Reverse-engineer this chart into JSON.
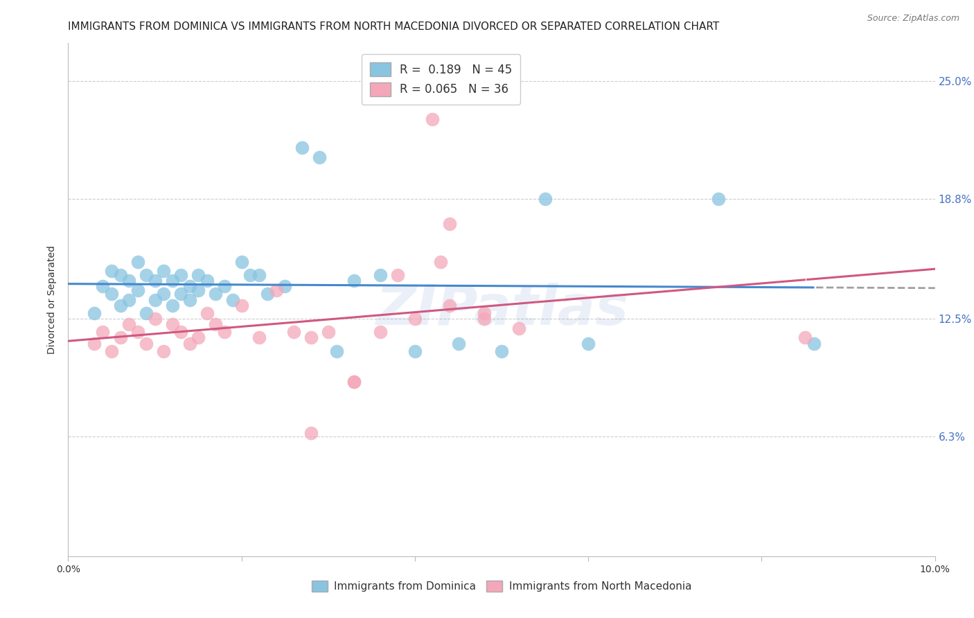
{
  "title": "IMMIGRANTS FROM DOMINICA VS IMMIGRANTS FROM NORTH MACEDONIA DIVORCED OR SEPARATED CORRELATION CHART",
  "source": "Source: ZipAtlas.com",
  "ylabel": "Divorced or Separated",
  "xlim": [
    0.0,
    0.1
  ],
  "ylim": [
    0.0,
    0.27
  ],
  "yticks": [
    0.063,
    0.125,
    0.188,
    0.25
  ],
  "ytick_labels": [
    "6.3%",
    "12.5%",
    "18.8%",
    "25.0%"
  ],
  "xticks": [
    0.0,
    0.02,
    0.04,
    0.06,
    0.08,
    0.1
  ],
  "xtick_labels": [
    "0.0%",
    "",
    "",
    "",
    "",
    "10.0%"
  ],
  "watermark": "ZIPatlas",
  "blue_R": 0.189,
  "blue_N": 45,
  "pink_R": 0.065,
  "pink_N": 36,
  "blue_color": "#89c4e1",
  "pink_color": "#f4a7b9",
  "blue_line_color": "#4488cc",
  "pink_line_color": "#d05880",
  "legend_label_blue": "Immigrants from Dominica",
  "legend_label_pink": "Immigrants from North Macedonia",
  "blue_scatter_x": [
    0.003,
    0.004,
    0.005,
    0.005,
    0.006,
    0.006,
    0.007,
    0.007,
    0.008,
    0.008,
    0.009,
    0.009,
    0.01,
    0.01,
    0.011,
    0.011,
    0.012,
    0.012,
    0.013,
    0.013,
    0.014,
    0.014,
    0.015,
    0.015,
    0.016,
    0.017,
    0.018,
    0.019,
    0.02,
    0.021,
    0.022,
    0.023,
    0.025,
    0.027,
    0.029,
    0.031,
    0.033,
    0.036,
    0.04,
    0.045,
    0.05,
    0.055,
    0.06,
    0.075,
    0.086
  ],
  "blue_scatter_y": [
    0.128,
    0.142,
    0.138,
    0.15,
    0.132,
    0.148,
    0.145,
    0.135,
    0.14,
    0.155,
    0.128,
    0.148,
    0.135,
    0.145,
    0.138,
    0.15,
    0.132,
    0.145,
    0.138,
    0.148,
    0.135,
    0.142,
    0.14,
    0.148,
    0.145,
    0.138,
    0.142,
    0.135,
    0.155,
    0.148,
    0.148,
    0.138,
    0.142,
    0.215,
    0.21,
    0.108,
    0.145,
    0.148,
    0.108,
    0.112,
    0.108,
    0.188,
    0.112,
    0.188,
    0.112
  ],
  "pink_scatter_x": [
    0.003,
    0.004,
    0.005,
    0.006,
    0.007,
    0.008,
    0.009,
    0.01,
    0.011,
    0.012,
    0.013,
    0.014,
    0.015,
    0.016,
    0.017,
    0.018,
    0.02,
    0.022,
    0.024,
    0.026,
    0.028,
    0.03,
    0.033,
    0.036,
    0.04,
    0.044,
    0.048,
    0.052,
    0.028,
    0.033,
    0.038,
    0.043,
    0.048,
    0.085,
    0.042,
    0.044
  ],
  "pink_scatter_y": [
    0.112,
    0.118,
    0.108,
    0.115,
    0.122,
    0.118,
    0.112,
    0.125,
    0.108,
    0.122,
    0.118,
    0.112,
    0.115,
    0.128,
    0.122,
    0.118,
    0.132,
    0.115,
    0.14,
    0.118,
    0.115,
    0.118,
    0.092,
    0.118,
    0.125,
    0.132,
    0.128,
    0.12,
    0.065,
    0.092,
    0.148,
    0.155,
    0.125,
    0.115,
    0.23,
    0.175
  ],
  "background_color": "#ffffff",
  "grid_color": "#cccccc",
  "title_fontsize": 11,
  "axis_label_fontsize": 10,
  "tick_fontsize": 10,
  "right_ytick_color": "#4472c4"
}
